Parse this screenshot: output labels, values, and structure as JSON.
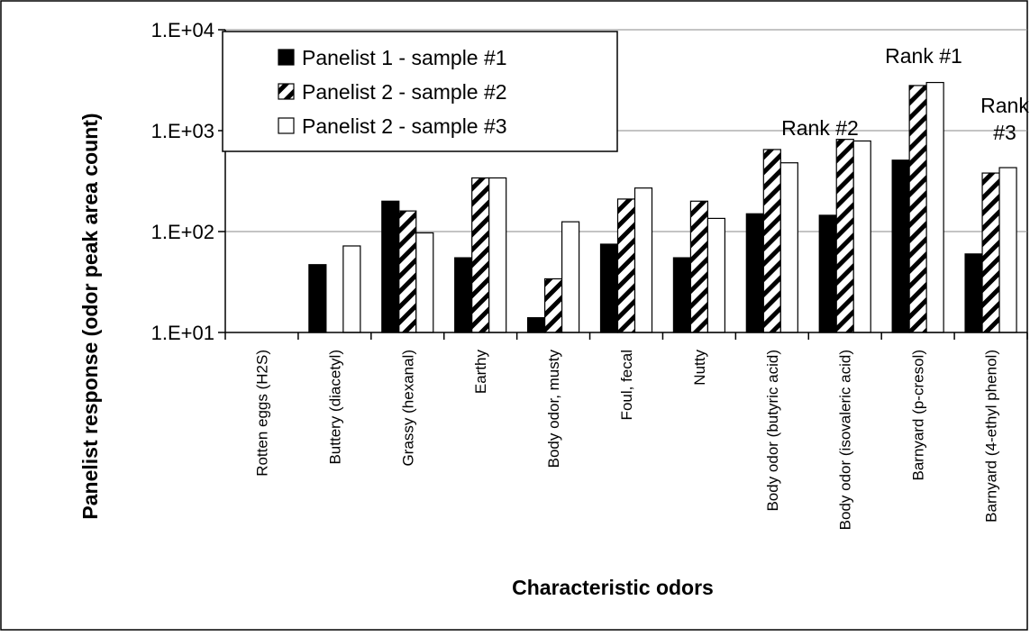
{
  "chart_data": {
    "type": "bar",
    "ylabel": "Panelist response (odor peak area count)",
    "xlabel": "Characteristic odors",
    "y_scale": "log",
    "ylim": [
      10,
      10000
    ],
    "y_ticks": [
      10,
      100,
      1000,
      10000
    ],
    "y_tick_labels": [
      "1.E+01",
      "1.E+02",
      "1.E+03",
      "1.E+04"
    ],
    "grid": "horizontal major gridlines",
    "legend_position": "top-left",
    "categories": [
      "Rotten eggs (H2S)",
      "Buttery (diacetyl)",
      "Grassy (hexanal)",
      "Earthy",
      "Body odor, musty",
      "Foul, fecal",
      "Nutty",
      "Body odor (butyric acid)",
      "Body odor (isovaleric acid)",
      "Barnyard (p-cresol)",
      "Barnyard (4-ethyl phenol)"
    ],
    "series": [
      {
        "name": "Panelist 1 - sample #1",
        "style": "solid",
        "color": "#000000",
        "values": [
          null,
          47,
          200,
          55,
          14,
          75,
          55,
          150,
          145,
          510,
          60
        ]
      },
      {
        "name": "Panelist 2 - sample #2",
        "style": "hatched",
        "color": "#000000",
        "values": [
          null,
          null,
          160,
          340,
          34,
          210,
          200,
          650,
          820,
          2800,
          380
        ]
      },
      {
        "name": "Panelist 2 - sample #3",
        "style": "hollow",
        "color": "#ffffff",
        "values": [
          null,
          72,
          97,
          340,
          125,
          270,
          135,
          480,
          790,
          3000,
          430
        ]
      }
    ],
    "annotations": [
      {
        "lines": [
          "Rank #2"
        ],
        "category_index": 7
      },
      {
        "lines": [
          "Rank #1"
        ],
        "category_index": 9
      },
      {
        "lines": [
          "Rank",
          "#3"
        ],
        "category_index": 10
      }
    ]
  }
}
